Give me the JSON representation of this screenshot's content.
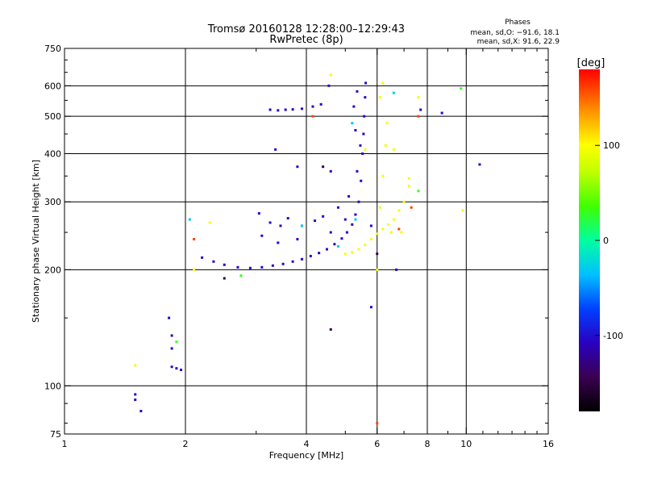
{
  "chart_data": {
    "type": "scatter",
    "title": "Tromsø 20160128 12:28:00–12:29:43",
    "subtitle": "RwPretec (8p)",
    "stats": {
      "header": "Phases",
      "line_o": "mean, sd,O: −91.6, 18.1",
      "line_x": "mean, sd,X:  91.6, 22.9"
    },
    "xlabel": "Frequency [MHz]",
    "ylabel": "Stationary phase Virtual Height [km]",
    "x_scale": "log",
    "y_scale": "log",
    "xlim": [
      1,
      16
    ],
    "ylim": [
      75,
      750
    ],
    "x_ticks": [
      1,
      2,
      4,
      6,
      8,
      10,
      16
    ],
    "x_tick_labels": [
      "1",
      "2",
      "4",
      "6",
      "8",
      "10",
      "16"
    ],
    "x_minor_ticks": [
      3,
      5,
      7,
      9,
      11,
      12,
      13,
      14,
      15
    ],
    "y_ticks": [
      75,
      100,
      200,
      300,
      400,
      500,
      600,
      750
    ],
    "y_tick_labels": [
      "75",
      "100",
      "200",
      "300",
      "400",
      "500",
      "600",
      "750"
    ],
    "y_minor_ticks": [
      80,
      90,
      150,
      250,
      350,
      450,
      550,
      650,
      700
    ],
    "grid": true,
    "colorbar": {
      "label": "[deg]",
      "range": [
        -180,
        180
      ],
      "ticks": [
        100,
        0,
        -100
      ],
      "tick_labels": [
        "100",
        "0",
        "-100"
      ]
    },
    "series": [
      {
        "color_value": -105,
        "points": [
          [
            3.25,
            520
          ],
          [
            3.4,
            518
          ],
          [
            3.55,
            520
          ],
          [
            3.7,
            521
          ],
          [
            3.9,
            523
          ],
          [
            4.15,
            530
          ],
          [
            4.35,
            537
          ],
          [
            2.2,
            215
          ],
          [
            2.35,
            210
          ],
          [
            2.5,
            206
          ],
          [
            2.7,
            203
          ],
          [
            2.9,
            202
          ],
          [
            3.1,
            203
          ],
          [
            3.3,
            205
          ],
          [
            3.5,
            207
          ],
          [
            3.7,
            210
          ],
          [
            3.9,
            213
          ],
          [
            4.1,
            217
          ],
          [
            4.3,
            221
          ],
          [
            4.5,
            226
          ],
          [
            4.7,
            233
          ],
          [
            4.9,
            241
          ],
          [
            5.05,
            250
          ],
          [
            5.2,
            262
          ],
          [
            5.3,
            278
          ],
          [
            5.4,
            300
          ],
          [
            5.47,
            340
          ],
          [
            5.52,
            400
          ],
          [
            5.55,
            450
          ],
          [
            5.57,
            500
          ],
          [
            5.6,
            560
          ],
          [
            5.62,
            610
          ],
          [
            3.05,
            280
          ],
          [
            3.25,
            265
          ],
          [
            3.45,
            260
          ],
          [
            3.6,
            272
          ],
          [
            3.9,
            260
          ],
          [
            4.2,
            268
          ],
          [
            4.4,
            275
          ],
          [
            4.8,
            290
          ],
          [
            5.0,
            270
          ],
          [
            3.1,
            245
          ],
          [
            3.4,
            235
          ],
          [
            3.8,
            240
          ],
          [
            4.6,
            250
          ],
          [
            5.1,
            310
          ],
          [
            5.35,
            360
          ],
          [
            5.45,
            420
          ],
          [
            5.3,
            460
          ],
          [
            5.25,
            530
          ],
          [
            5.35,
            580
          ],
          [
            3.35,
            410
          ],
          [
            3.8,
            370
          ],
          [
            4.6,
            360
          ],
          [
            4.55,
            600
          ],
          [
            5.8,
            260
          ],
          [
            1.5,
            95
          ],
          [
            1.5,
            92
          ],
          [
            1.55,
            86
          ],
          [
            1.85,
            112
          ],
          [
            1.9,
            111
          ],
          [
            1.95,
            110
          ],
          [
            1.85,
            125
          ],
          [
            1.85,
            135
          ],
          [
            1.82,
            150
          ],
          [
            7.7,
            520
          ],
          [
            8.7,
            510
          ],
          [
            10.8,
            375
          ],
          [
            6.7,
            200
          ],
          [
            5.8,
            160
          ]
        ]
      },
      {
        "color_value": 95,
        "points": [
          [
            5.0,
            220
          ],
          [
            5.2,
            222
          ],
          [
            5.4,
            226
          ],
          [
            5.6,
            232
          ],
          [
            5.8,
            240
          ],
          [
            6.0,
            248
          ],
          [
            6.2,
            255
          ],
          [
            6.4,
            262
          ],
          [
            6.6,
            270
          ],
          [
            6.8,
            285
          ],
          [
            7.0,
            300
          ],
          [
            7.2,
            330
          ],
          [
            6.0,
            200
          ],
          [
            6.1,
            290
          ],
          [
            6.2,
            350
          ],
          [
            6.3,
            420
          ],
          [
            6.35,
            480
          ],
          [
            6.1,
            560
          ],
          [
            6.2,
            610
          ],
          [
            6.5,
            250
          ],
          [
            6.9,
            250
          ],
          [
            7.6,
            560
          ],
          [
            7.2,
            345
          ],
          [
            9.8,
            285
          ],
          [
            4.6,
            640
          ],
          [
            2.3,
            265
          ],
          [
            2.1,
            200
          ],
          [
            1.5,
            113
          ],
          [
            5.6,
            410
          ],
          [
            6.6,
            410
          ]
        ]
      },
      {
        "color_value": -30,
        "points": [
          [
            2.05,
            270
          ],
          [
            3.9,
            260
          ],
          [
            4.8,
            230
          ],
          [
            6.6,
            575
          ],
          [
            5.2,
            480
          ],
          [
            5.3,
            270
          ]
        ]
      },
      {
        "color_value": 30,
        "points": [
          [
            1.9,
            130
          ],
          [
            2.75,
            193
          ],
          [
            7.6,
            320
          ],
          [
            9.7,
            590
          ]
        ]
      },
      {
        "color_value": 160,
        "points": [
          [
            2.1,
            240
          ],
          [
            4.15,
            500
          ],
          [
            7.6,
            500
          ],
          [
            7.3,
            290
          ],
          [
            6.8,
            255
          ],
          [
            6.0,
            80
          ]
        ]
      },
      {
        "color_value": -150,
        "points": [
          [
            4.4,
            370
          ],
          [
            4.6,
            140
          ],
          [
            2.5,
            190
          ],
          [
            6.0,
            220
          ]
        ]
      }
    ]
  }
}
